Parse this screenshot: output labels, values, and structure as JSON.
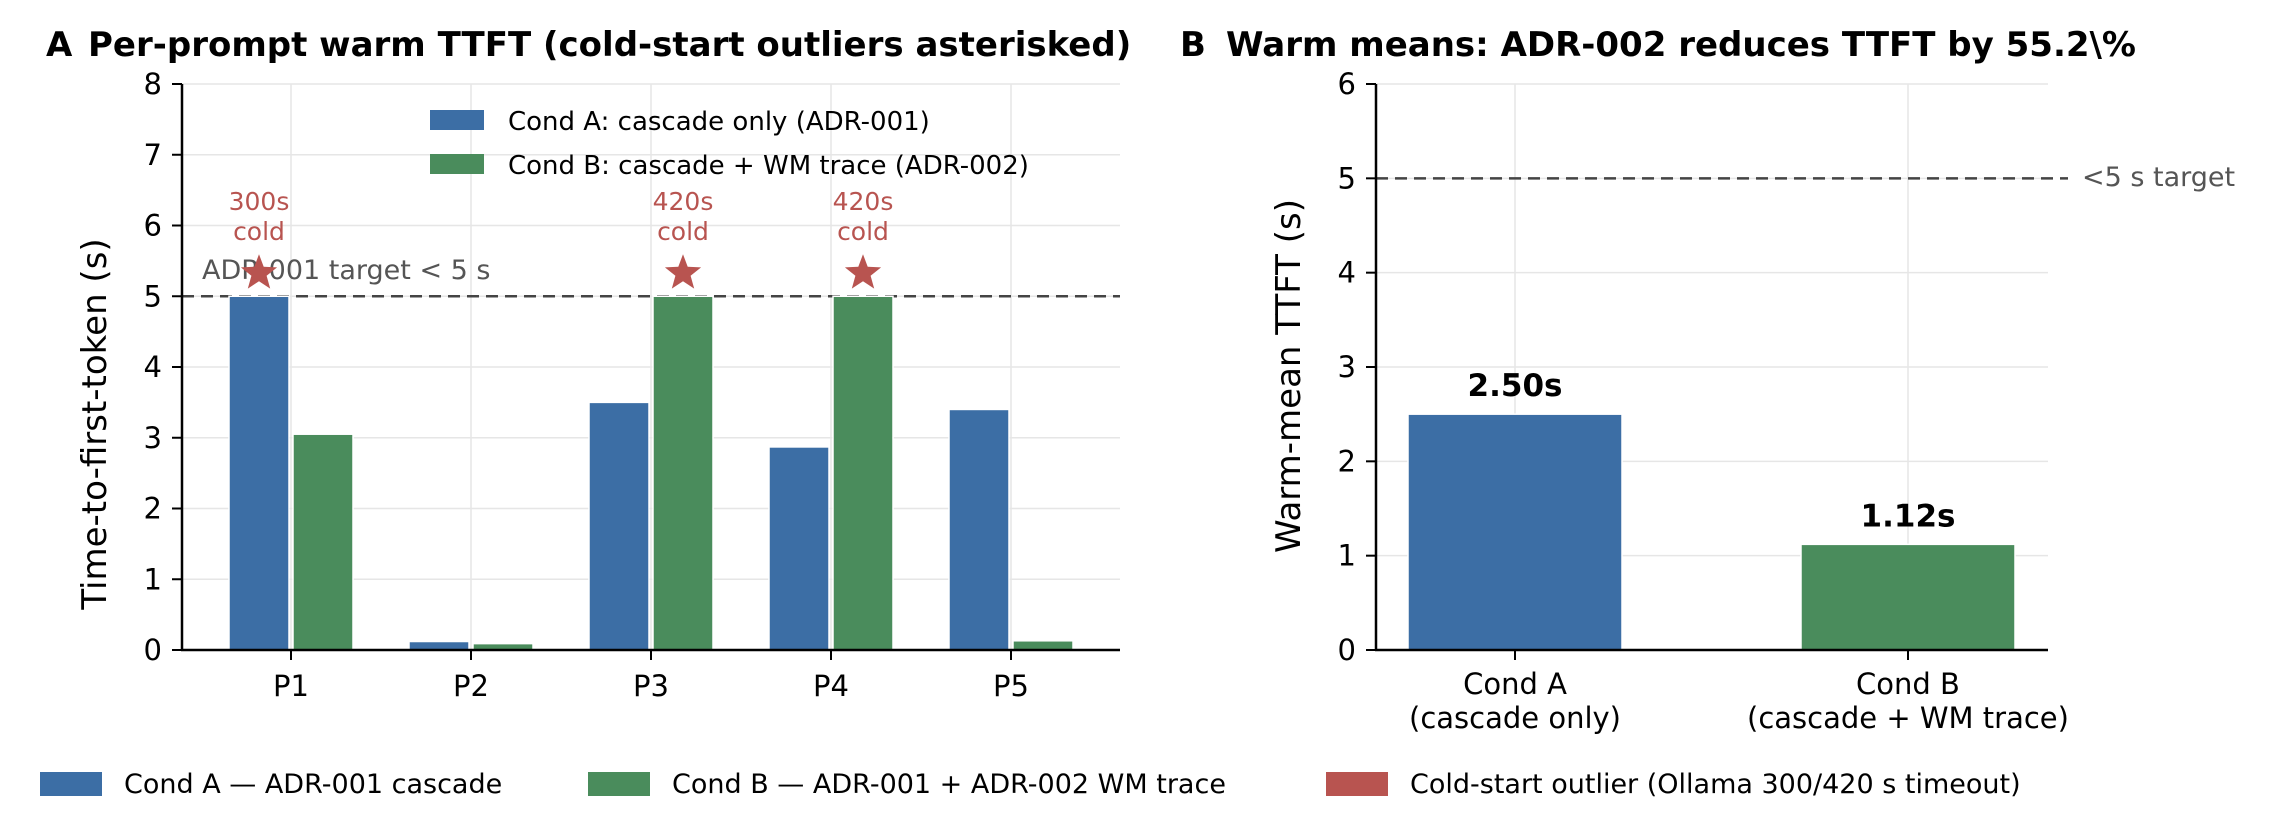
{
  "chart_data": [
    {
      "panel_letter": "A",
      "title": "Per-prompt warm TTFT (cold-start outliers asterisked)",
      "type": "bar",
      "categories": [
        "P1",
        "P2",
        "P3",
        "P4",
        "P5"
      ],
      "series": [
        {
          "name": "Cond A: cascade only (ADR-001)",
          "values": [
            5.0,
            0.12,
            3.5,
            2.87,
            3.4
          ],
          "color": "#3c6ea5"
        },
        {
          "name": "Cond B: cascade + WM trace (ADR-002)",
          "values": [
            3.05,
            0.09,
            5.0,
            5.0,
            0.13
          ],
          "color": "#4a8c5c"
        }
      ],
      "outliers": [
        {
          "category": "P1",
          "series": 0,
          "line1": "300s",
          "line2": "cold"
        },
        {
          "category": "P3",
          "series": 1,
          "line1": "420s",
          "line2": "cold"
        },
        {
          "category": "P4",
          "series": 1,
          "line1": "420s",
          "line2": "cold"
        }
      ],
      "outlier_color": "#b85450",
      "target": {
        "value": 5,
        "label": "ADR-001 target < 5 s"
      },
      "ylabel": "Time-to-first-token (s)",
      "xlabel": "",
      "ylim": [
        0,
        8
      ],
      "yticks": [
        "0",
        "1",
        "2",
        "3",
        "4",
        "5",
        "6",
        "7",
        "8"
      ],
      "grid": true,
      "legend_position": "top-right"
    },
    {
      "panel_letter": "B",
      "title": "Warm means: ADR-002 reduces TTFT by 55.2\\%",
      "type": "bar",
      "categories": [
        {
          "line1": "Cond A",
          "line2": "(cascade only)"
        },
        {
          "line1": "Cond B",
          "line2": "(cascade + WM trace)"
        }
      ],
      "values": [
        2.5,
        1.12
      ],
      "value_labels": [
        "2.50s",
        "1.12s"
      ],
      "colors": [
        "#3c6ea5",
        "#4a8c5c"
      ],
      "target": {
        "value": 5,
        "label": "<5 s target"
      },
      "ylabel": "Warm-mean TTFT (s)",
      "xlabel": "",
      "ylim": [
        0,
        6
      ],
      "yticks": [
        "0",
        "1",
        "2",
        "3",
        "4",
        "5",
        "6"
      ],
      "grid": true
    }
  ],
  "bottom_legend": [
    {
      "label": "Cond A — ADR-001 cascade",
      "color": "#3c6ea5"
    },
    {
      "label": "Cond B — ADR-001 + ADR-002 WM trace",
      "color": "#4a8c5c"
    },
    {
      "label": "Cold-start outlier (Ollama 300/420 s timeout)",
      "color": "#b85450"
    }
  ]
}
